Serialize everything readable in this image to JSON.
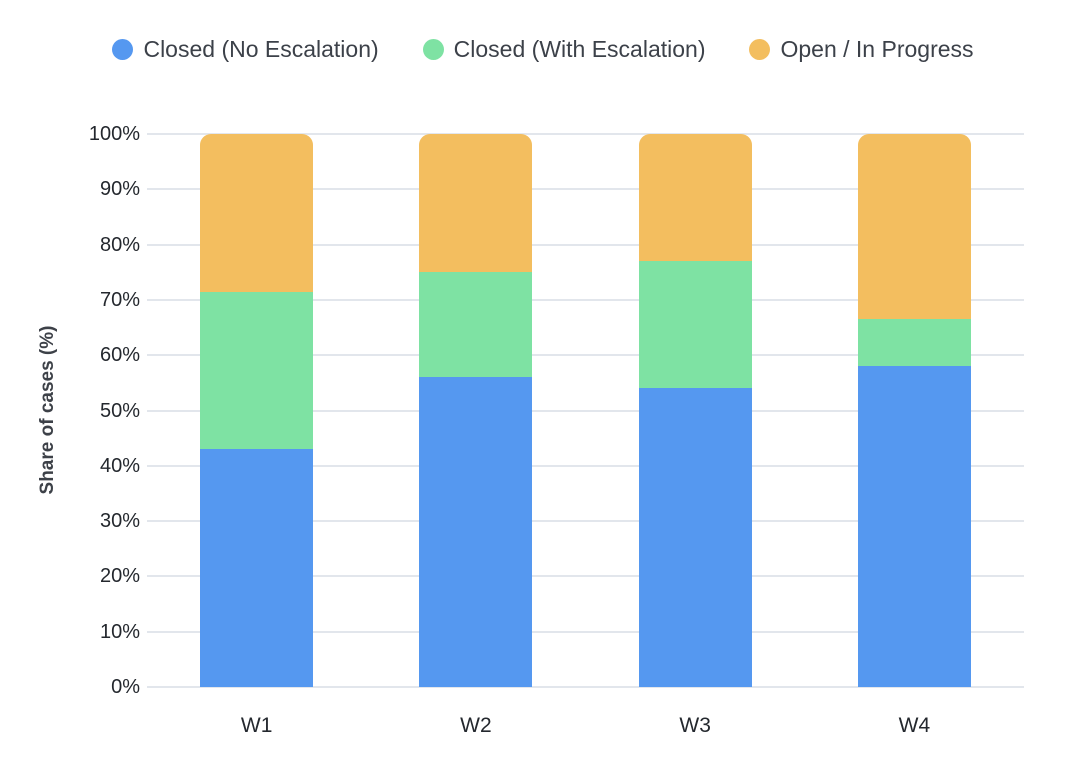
{
  "chart_data": {
    "type": "bar",
    "stacked": true,
    "percent_stacked": true,
    "title": "",
    "xlabel": "",
    "ylabel": "Share of cases (%)",
    "categories": [
      "W1",
      "W2",
      "W3",
      "W4"
    ],
    "series": [
      {
        "name": "Closed (No Escalation)",
        "color": "#5598f0",
        "values": [
          43.0,
          56.0,
          54.0,
          58.0
        ]
      },
      {
        "name": "Closed (With Escalation)",
        "color": "#7ee2a3",
        "values": [
          28.5,
          19.0,
          23.0,
          8.5
        ]
      },
      {
        "name": "Open / In Progress",
        "color": "#f3be5f",
        "values": [
          28.5,
          25.0,
          23.0,
          33.5
        ]
      }
    ],
    "ylim": [
      0,
      100
    ],
    "ytick_labels": [
      "0%",
      "10%",
      "20%",
      "30%",
      "40%",
      "50%",
      "60%",
      "70%",
      "80%",
      "90%",
      "100%"
    ],
    "legend_position": "top",
    "grid": true,
    "gridline_color": "#e2e6ec",
    "background_color": "#ffffff",
    "text_color": "#24282e"
  }
}
